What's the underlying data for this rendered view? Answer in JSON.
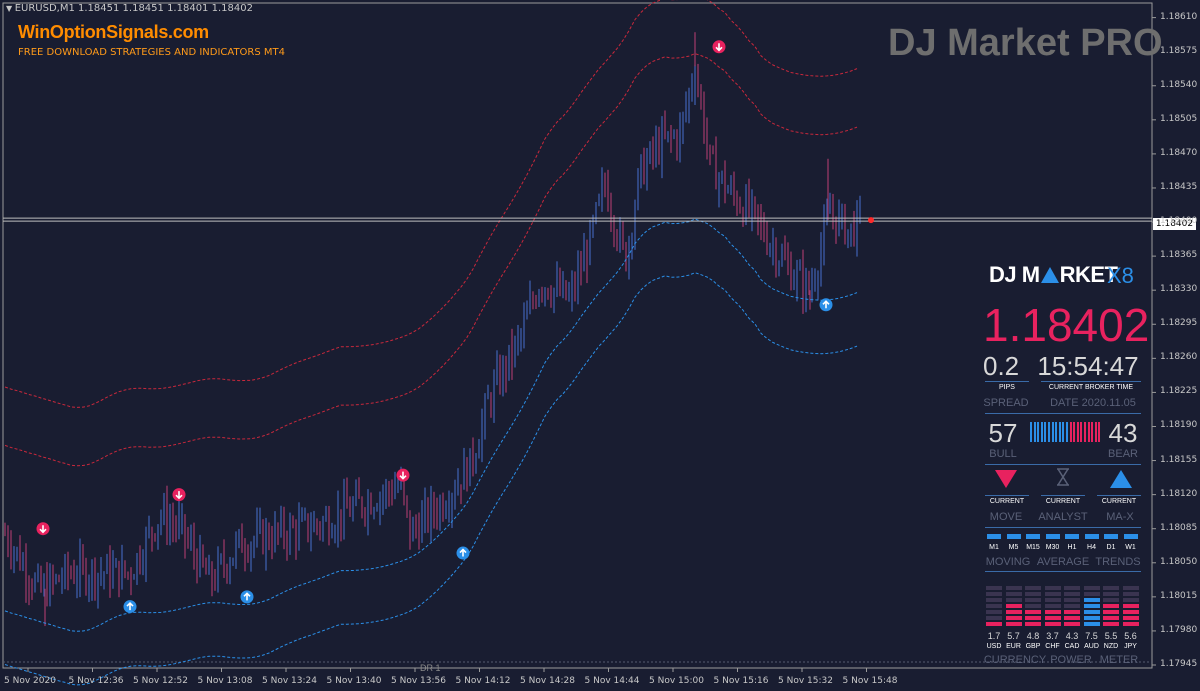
{
  "header": {
    "symbol_info": "EURUSD,M1  1.18451 1.18451 1.18401 1.18402",
    "site_title": "WinOptionSignals.com",
    "site_subtitle": "FREE DOWNLOAD STRATEGIES AND INDICATORS MT4",
    "brand": "DJ Market PRO"
  },
  "chart_data": {
    "type": "candlestick",
    "symbol": "EURUSD",
    "timeframe": "M1",
    "current_price": "1.18402",
    "y_ticks": [
      "1.18610",
      "1.18575",
      "1.18540",
      "1.18505",
      "1.18470",
      "1.18435",
      "1.18400",
      "1.18365",
      "1.18330",
      "1.18295",
      "1.18260",
      "1.18225",
      "1.18190",
      "1.18155",
      "1.18120",
      "1.18085",
      "1.18050",
      "1.18015",
      "1.17980",
      "1.17945"
    ],
    "y_range": [
      1.17945,
      1.18625
    ],
    "x_ticks": [
      "5 Nov 2020",
      "5 Nov 12:36",
      "5 Nov 12:52",
      "5 Nov 13:08",
      "5 Nov 13:24",
      "5 Nov 13:40",
      "5 Nov 13:56",
      "5 Nov 14:12",
      "5 Nov 14:28",
      "5 Nov 14:44",
      "5 Nov 15:00",
      "5 Nov 15:16",
      "5 Nov 15:32",
      "5 Nov 15:48"
    ],
    "separator_label": "DR 1",
    "colors": {
      "bull": "#3f63b5",
      "bear": "#a23a6a",
      "upper_band": "#c8283c",
      "lower_band": "#2b8fe8",
      "sell_arrow": "#e8225f",
      "buy_arrow": "#2b8fe8"
    }
  },
  "panel": {
    "logo_left": "DJ M",
    "logo_right": "RKET",
    "logo_suffix": "X8",
    "price": "1.18402",
    "spread": "0.2",
    "spread_unit": "PIPS",
    "spread_label": "SPREAD",
    "time": "15:54:47",
    "time_caption": "CURRENT BROKER TIME",
    "date_label": "DATE 2020.11.05",
    "bull": "57",
    "bear": "43",
    "bull_label": "BULL",
    "bear_label": "BEAR",
    "current": "CURRENT",
    "move_label": "MOVE",
    "analyst_label": "ANALYST",
    "max_label": "MA-X",
    "timeframes": [
      "M1",
      "M5",
      "M15",
      "M30",
      "H1",
      "H4",
      "D1",
      "W1"
    ],
    "moving_label": "MOVING",
    "average_label": "AVERAGE",
    "trends_label": "TRENDS",
    "currencies": [
      "USD",
      "EUR",
      "GBP",
      "CHF",
      "CAD",
      "AUD",
      "NZD",
      "JPY"
    ],
    "currency_values": [
      "1.7",
      "5.7",
      "4.8",
      "3.7",
      "4.3",
      "7.5",
      "5.5",
      "5.6"
    ],
    "currency_label": "CURRENCY",
    "power_label": "POWER",
    "meter_label": "METER"
  }
}
